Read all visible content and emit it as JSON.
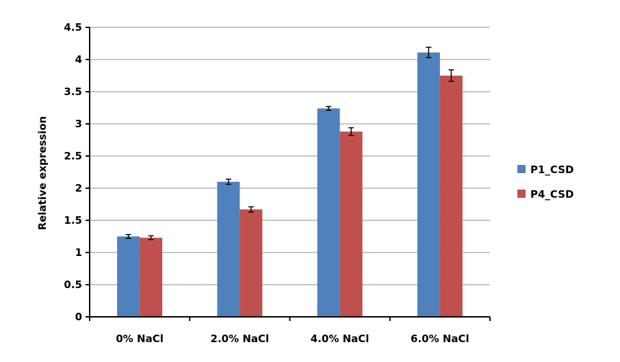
{
  "chart_data": {
    "type": "bar",
    "title": "",
    "xlabel": "",
    "ylabel": "Relative expression",
    "ylim": [
      0,
      4.5
    ],
    "yticks": [
      0,
      0.5,
      1,
      1.5,
      2,
      2.5,
      3,
      3.5,
      4,
      4.5
    ],
    "ytick_labels": [
      "0",
      "0.5",
      "1",
      "1.5",
      "2",
      "2.5",
      "3",
      "3.5",
      "4",
      "4.5"
    ],
    "grid": true,
    "legend_position": "right",
    "categories": [
      "0% NaCl",
      "2.0% NaCl",
      "4.0% NaCl",
      "6.0% NaCl"
    ],
    "series": [
      {
        "name": "P1_CSD",
        "color": "#4f81bd",
        "values": [
          1.25,
          2.1,
          3.24,
          4.11
        ],
        "errors": [
          0.03,
          0.04,
          0.03,
          0.08
        ]
      },
      {
        "name": "P4_CSD",
        "color": "#c0504d",
        "values": [
          1.23,
          1.67,
          2.88,
          3.75
        ],
        "errors": [
          0.03,
          0.04,
          0.06,
          0.09
        ]
      }
    ]
  }
}
